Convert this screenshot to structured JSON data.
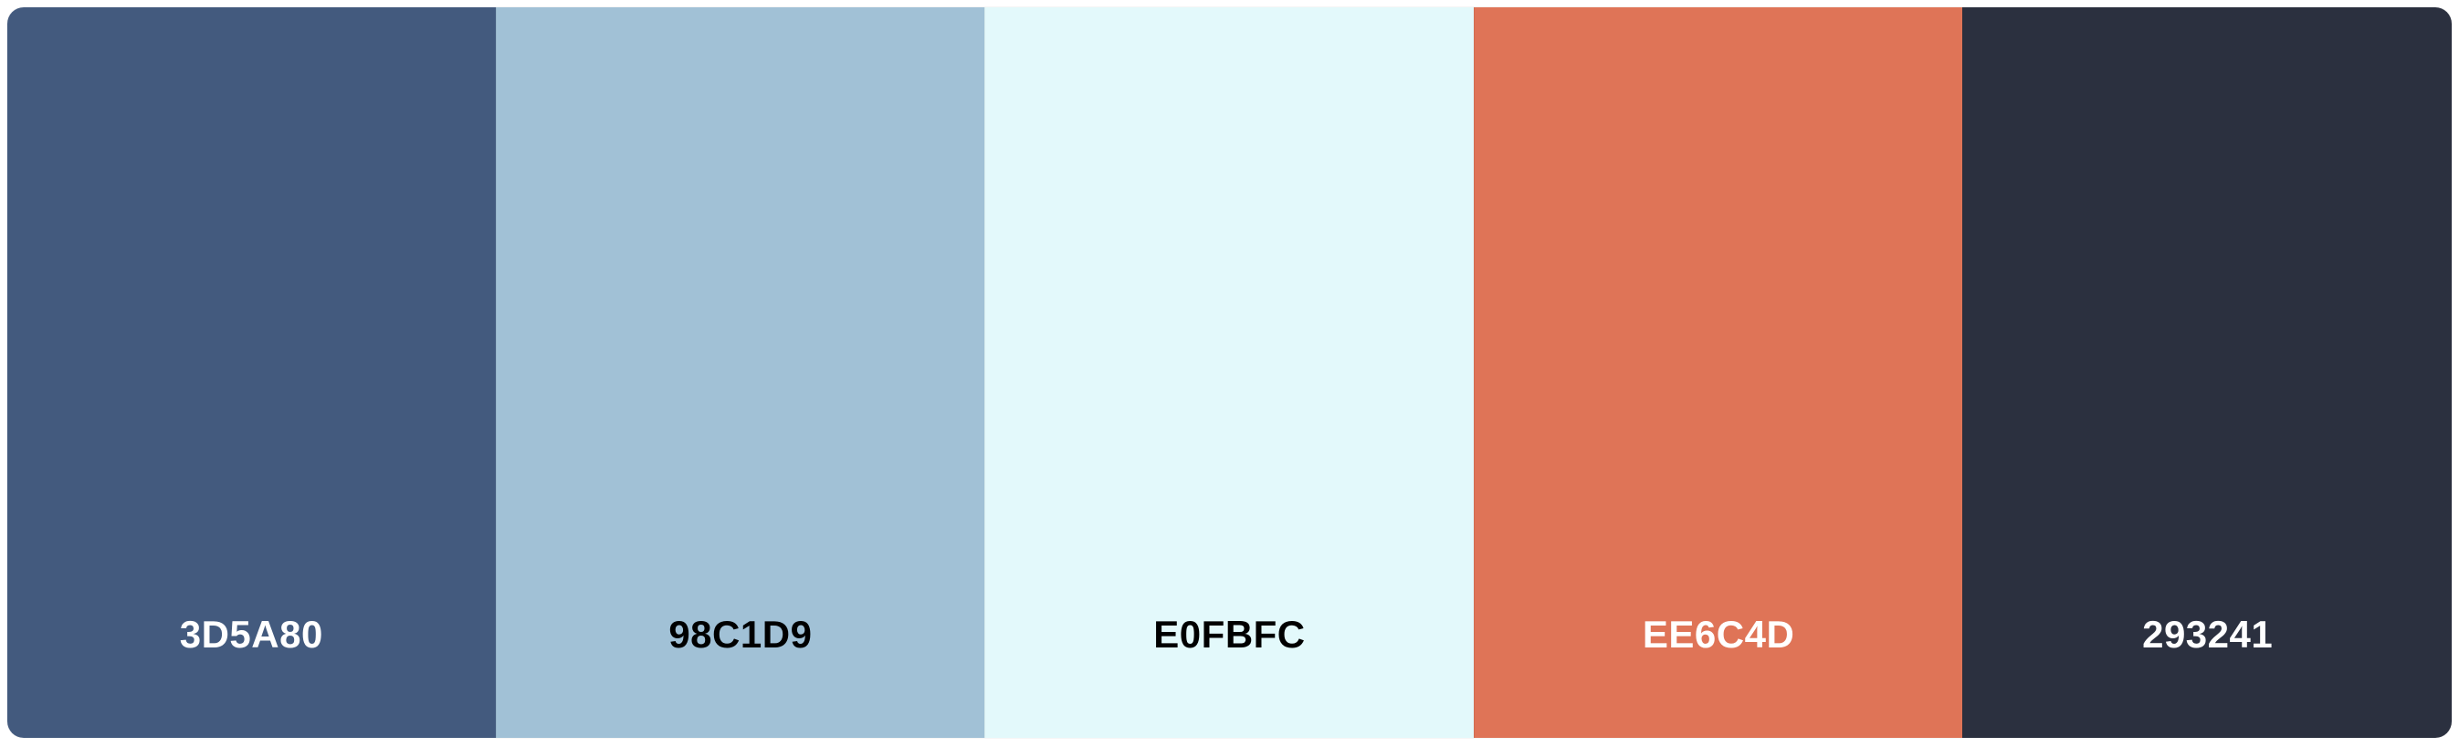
{
  "palette": {
    "swatches": [
      {
        "hex": "3D5A80",
        "color": "#435A7E",
        "text_color": "#ffffff"
      },
      {
        "hex": "98C1D9",
        "color": "#A1C1D6",
        "text_color": "#000000"
      },
      {
        "hex": "E0FBFC",
        "color": "#E3F9FB",
        "text_color": "#000000"
      },
      {
        "hex": "EE6C4D",
        "color": "#DF7457",
        "text_color": "#ffffff"
      },
      {
        "hex": "293241",
        "color": "#2B303F",
        "text_color": "#ffffff"
      }
    ]
  }
}
